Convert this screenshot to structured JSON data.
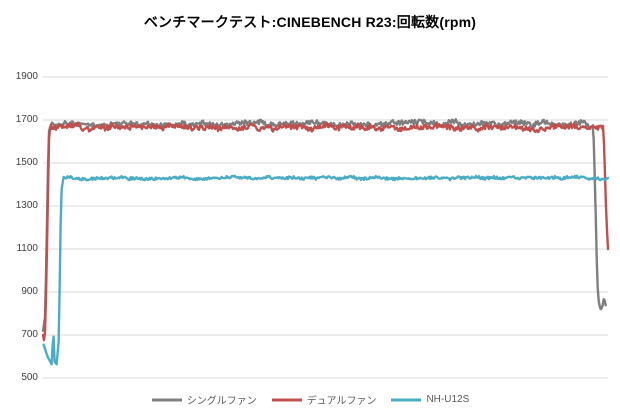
{
  "chart_data": {
    "type": "line",
    "title": "ベンチマークテスト:CINEBENCH R23:回転数(rpm)",
    "xlabel": "",
    "ylabel": "",
    "ylim": [
      500,
      1900
    ],
    "yticks": [
      1900,
      1700,
      1500,
      1300,
      1100,
      900,
      700,
      500
    ],
    "grid": "horizontal-only",
    "grid_color": "#d9d9d9",
    "tick_label_color": "#404040",
    "title_color": "#000000",
    "legend_text_color": "#595959",
    "legend_position": "bottom-center",
    "x_axis_labels_visible": false,
    "series": [
      {
        "name": "シングルファン",
        "slug": "single-fan",
        "color": "#7F7F7F",
        "steady_rpm": 1683,
        "noise_amp": 16,
        "noisy_span": [
          0.014,
          0.974
        ],
        "keypoints": [
          [
            0.0,
            720
          ],
          [
            0.004,
            790
          ],
          [
            0.01,
            1640
          ],
          [
            0.014,
            1683
          ],
          [
            0.974,
            1683
          ],
          [
            0.978,
            1300
          ],
          [
            0.981,
            950
          ],
          [
            0.984,
            845
          ],
          [
            0.987,
            820
          ],
          [
            0.99,
            828
          ],
          [
            0.993,
            875
          ],
          [
            0.996,
            838
          ]
        ]
      },
      {
        "name": "デュアルファン",
        "slug": "dual-fan",
        "color": "#C0504D",
        "steady_rpm": 1666,
        "noise_amp": 17,
        "noisy_span": [
          0.011,
          0.992
        ],
        "keypoints": [
          [
            0.0,
            700
          ],
          [
            0.003,
            660
          ],
          [
            0.006,
            950
          ],
          [
            0.011,
            1666
          ],
          [
            0.992,
            1666
          ],
          [
            0.997,
            1250
          ],
          [
            1.0,
            1100
          ]
        ]
      },
      {
        "name": "NH-U12S",
        "slug": "nh-u12s",
        "color": "#4BACC6",
        "steady_rpm": 1430,
        "noise_amp": 9,
        "noisy_span": [
          0.036,
          1.0
        ],
        "keypoints": [
          [
            0.001,
            655
          ],
          [
            0.008,
            600
          ],
          [
            0.013,
            575
          ],
          [
            0.016,
            560
          ],
          [
            0.018,
            755
          ],
          [
            0.02,
            578
          ],
          [
            0.024,
            563
          ],
          [
            0.028,
            680
          ],
          [
            0.032,
            1360
          ],
          [
            0.036,
            1430
          ],
          [
            1.0,
            1430
          ]
        ]
      }
    ]
  }
}
